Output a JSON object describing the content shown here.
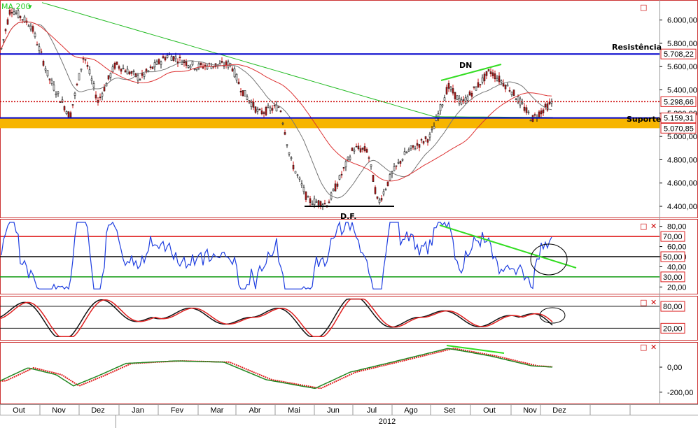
{
  "colors": {
    "support_band": "#f7b500",
    "horizontal_line": "#0000cc",
    "price_marker": "#cc0000",
    "ma_long": "#22bb22",
    "ma_mid": "#dd3333",
    "ma_short": "#777777",
    "rsi": "#1f3fe0",
    "stoch_k": "#111111",
    "stoch_d": "#e02020",
    "osc_a": "#228822",
    "osc_b": "#e02020",
    "trend_green": "#33dd22",
    "level_green": "#119911"
  },
  "chart_data": [
    {
      "type": "candlestick",
      "legend_label": "MA 200",
      "y_ticks": [
        "6.000,00",
        "5.800,00",
        "5.600,00",
        "5.400,00",
        "5.200,00",
        "5.000,00",
        "4.800,00",
        "4.600,00",
        "4.400,00"
      ],
      "ylim": [
        4310,
        6160
      ],
      "price_boxes": [
        "5.708,22",
        "5.298,66",
        "5.159,31",
        "5.070,85"
      ],
      "levels": {
        "resistance": 5708.22,
        "current": 5298.66,
        "support_top": 5159.31,
        "support_bottom": 5070.85
      },
      "annotations": [
        "Resistência",
        "Suporte",
        "DN",
        "D.F."
      ],
      "bottom_line_value": 4400
    },
    {
      "type": "line",
      "indicator": "RSI",
      "y_ticks": [
        "80,00",
        "60,00",
        "50,00",
        "40,00",
        "20,00"
      ],
      "boxed_levels": [
        "70,00",
        "50,00",
        "30,00"
      ],
      "levels": [
        70,
        50,
        30
      ],
      "ylim": [
        14,
        86
      ]
    },
    {
      "type": "line",
      "indicator": "Stochastic",
      "boxed_levels": [
        "80,00",
        "20,00"
      ],
      "levels": [
        80,
        20
      ],
      "ylim": [
        -10,
        105
      ]
    },
    {
      "type": "line",
      "indicator": "Oscillator",
      "y_ticks": [
        "0,00",
        "-200,00"
      ],
      "ylim": [
        -285,
        190
      ]
    }
  ],
  "x_axis": {
    "months": [
      "Out",
      "Nov",
      "Dez",
      "Jan",
      "Fev",
      "Mar",
      "Abr",
      "Mai",
      "Jun",
      "Jul",
      "Ago",
      "Set",
      "Out",
      "Nov",
      "Dez"
    ],
    "year": "2012"
  },
  "controls": {
    "maximize_icon": "□",
    "close_icon": "✕",
    "dropdown_icon": "▾"
  }
}
